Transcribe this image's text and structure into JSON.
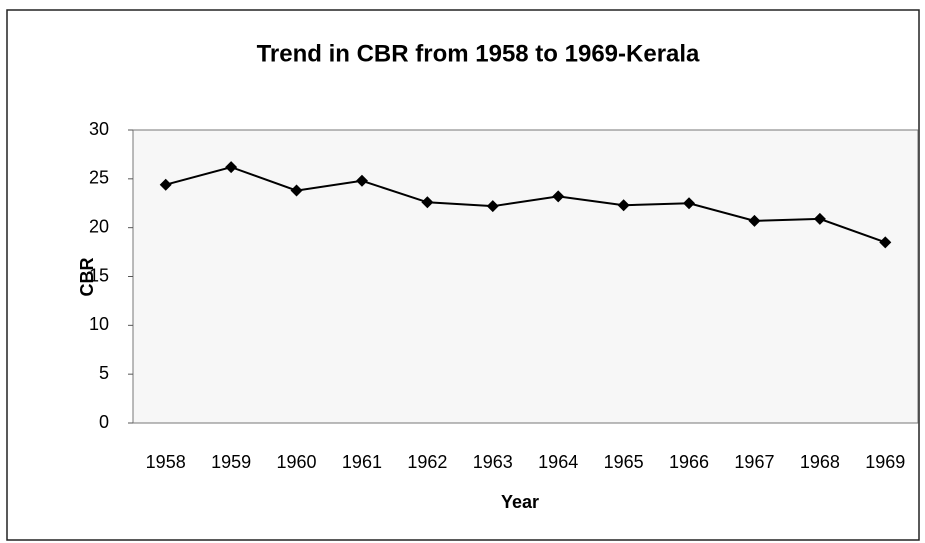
{
  "chart_data": {
    "type": "line",
    "title": "Trend in CBR from 1958 to 1969-Kerala",
    "x_label": "Year",
    "y_label": "CBR",
    "categories": [
      "1958",
      "1959",
      "1960",
      "1961",
      "1962",
      "1963",
      "1964",
      "1965",
      "1966",
      "1967",
      "1968",
      "1969"
    ],
    "series": [
      {
        "name": "CBR",
        "color": "#000000",
        "values": [
          24.4,
          26.2,
          23.8,
          24.8,
          22.6,
          22.2,
          23.2,
          22.3,
          22.5,
          20.7,
          20.9,
          18.5
        ]
      }
    ],
    "ylim": [
      0,
      30
    ],
    "yticks": [
      0,
      5,
      10,
      15,
      20,
      25,
      30
    ],
    "grid": false,
    "legend": false
  }
}
